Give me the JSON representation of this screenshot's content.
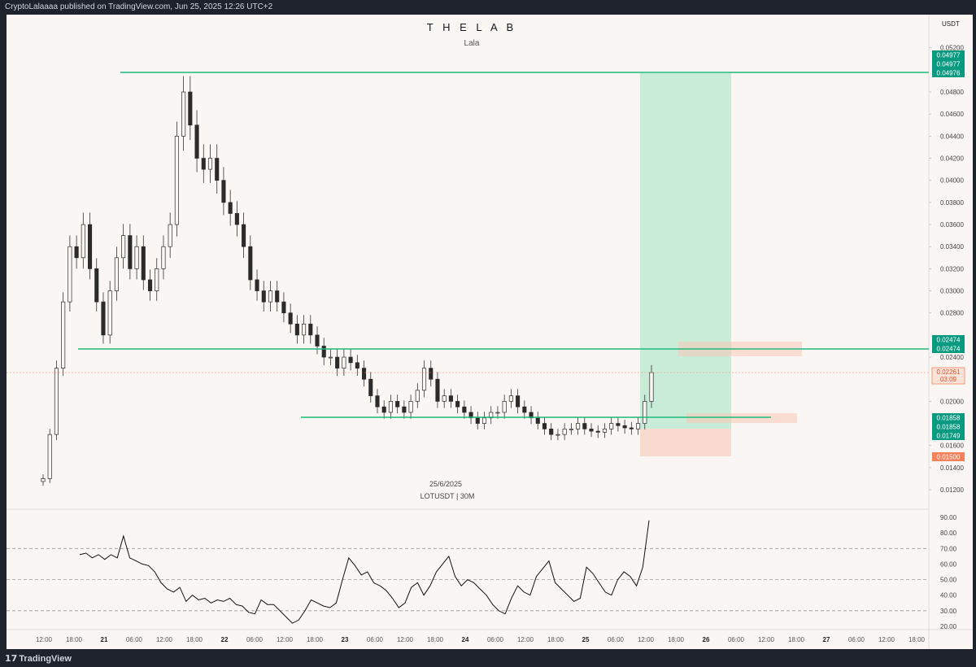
{
  "publish_banner": "CryptoLalaaaa published on TradingView.com, Jun 25, 2025 12:26 UTC+2",
  "footer_brand": "TradingView",
  "chart_title": "T H E L A B",
  "chart_subtitle": "Lala",
  "watermark_date": "25/6/2025",
  "watermark_symbol": "LOTUSDT | 30M",
  "currency_label": "USDT",
  "colors": {
    "up": "#089981",
    "line_green": "#1fb97a",
    "profit_zone": "#a6e6c6",
    "loss_zone": "#f7c8b6",
    "price_badge": "#f7825a"
  },
  "price_axis_ticks": [
    "0.05200",
    "0.04800",
    "0.04600",
    "0.04400",
    "0.04200",
    "0.04000",
    "0.03800",
    "0.03600",
    "0.03400",
    "0.03200",
    "0.03000",
    "0.02800",
    "0.02400",
    "0.02000",
    "0.01600",
    "0.01400",
    "0.01200"
  ],
  "price_badges": {
    "tp_1": "0.04977",
    "tp_2": "0.04977",
    "tp_3": "0.04976",
    "level_1": "0.02474",
    "level_2": "0.02474",
    "current_price": "0.02261",
    "countdown": "03:09",
    "entry_1": "0.01858",
    "entry_2": "0.01858",
    "entry_3": "0.01749",
    "stop": "0.01500"
  },
  "rsi_axis_ticks": [
    "90.00",
    "80.00",
    "70.00",
    "60.00",
    "50.00",
    "40.00",
    "30.00",
    "20.00"
  ],
  "time_axis_ticks": [
    "12:00",
    "18:00",
    "21",
    "06:00",
    "12:00",
    "18:00",
    "22",
    "06:00",
    "12:00",
    "18:00",
    "23",
    "06:00",
    "12:00",
    "18:00",
    "24",
    "06:00",
    "12:00",
    "18:00",
    "25",
    "06:00",
    "12:00",
    "18:00",
    "26",
    "06:00",
    "12:00",
    "18:00",
    "27",
    "06:00",
    "12:00",
    "18:00"
  ],
  "chart_data": {
    "type": "candlestick",
    "symbol": "LOTUSDT",
    "interval": "30M",
    "currency": "USDT",
    "y_range": [
      0.0115,
      0.0535
    ],
    "ohlc_close_estimates": [
      0.013,
      0.017,
      0.023,
      0.029,
      0.034,
      0.033,
      0.036,
      0.032,
      0.029,
      0.026,
      0.03,
      0.033,
      0.035,
      0.032,
      0.034,
      0.031,
      0.03,
      0.032,
      0.034,
      0.036,
      0.044,
      0.048,
      0.045,
      0.042,
      0.041,
      0.042,
      0.04,
      0.038,
      0.037,
      0.036,
      0.034,
      0.031,
      0.03,
      0.029,
      0.03,
      0.029,
      0.028,
      0.027,
      0.026,
      0.027,
      0.026,
      0.025,
      0.024,
      0.024,
      0.023,
      0.024,
      0.0235,
      0.023,
      0.022,
      0.0205,
      0.0195,
      0.019,
      0.02,
      0.0195,
      0.019,
      0.02,
      0.021,
      0.023,
      0.022,
      0.02,
      0.0205,
      0.02,
      0.0195,
      0.019,
      0.0185,
      0.018,
      0.0185,
      0.019,
      0.019,
      0.02,
      0.0205,
      0.0195,
      0.019,
      0.0185,
      0.018,
      0.0175,
      0.017,
      0.017,
      0.0175,
      0.0175,
      0.018,
      0.0175,
      0.0173,
      0.0172,
      0.0175,
      0.018,
      0.0178,
      0.0176,
      0.0175,
      0.018,
      0.02,
      0.0226
    ],
    "horizontal_levels": [
      {
        "price": 0.04977
      },
      {
        "price": 0.02474
      },
      {
        "price": 0.01858
      }
    ],
    "long_position": {
      "entry": 0.01749,
      "target": 0.04977,
      "stop": 0.015
    },
    "rsi": {
      "levels": [
        70,
        50,
        30
      ],
      "y_range": [
        15,
        95
      ],
      "values": [
        66,
        67,
        64,
        66,
        63,
        66,
        64,
        78,
        64,
        62,
        60,
        59,
        55,
        48,
        44,
        42,
        45,
        36,
        40,
        37,
        38,
        35,
        37,
        36,
        38,
        34,
        33,
        29,
        28,
        37,
        34,
        34,
        30,
        26,
        22,
        24,
        30,
        37,
        35,
        33,
        32,
        35,
        50,
        64,
        59,
        53,
        55,
        48,
        46,
        43,
        38,
        32,
        35,
        45,
        48,
        40,
        46,
        55,
        60,
        65,
        52,
        46,
        50,
        48,
        44,
        40,
        34,
        30,
        28,
        38,
        46,
        42,
        40,
        52,
        57,
        62,
        48,
        44,
        40,
        36,
        38,
        58,
        54,
        48,
        42,
        40,
        50,
        55,
        52,
        46,
        58,
        88
      ]
    }
  }
}
